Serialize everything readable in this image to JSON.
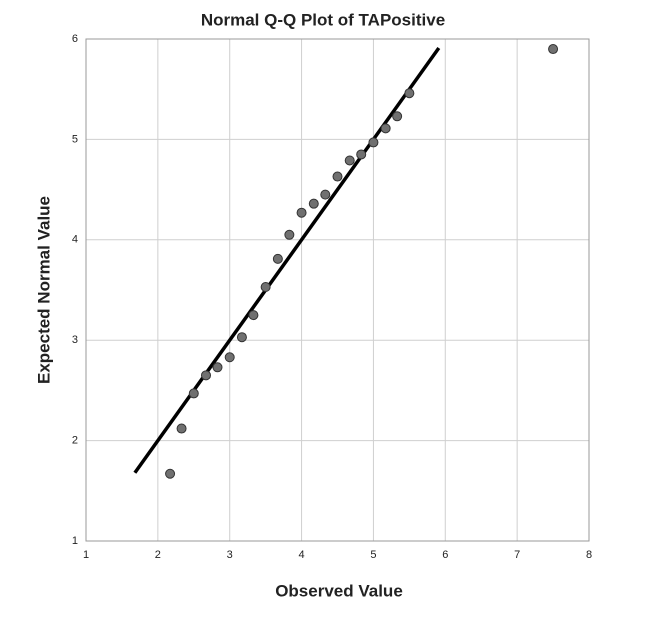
{
  "chart_data": {
    "type": "scatter",
    "title": "Normal Q-Q Plot of TAPositive",
    "x_label": "Observed Value",
    "y_label": "Expected Normal Value",
    "x": [
      2.17,
      2.33,
      2.5,
      2.67,
      2.83,
      3.0,
      3.17,
      3.33,
      3.5,
      3.67,
      3.83,
      4.0,
      4.17,
      4.33,
      4.5,
      4.67,
      4.83,
      5.0,
      5.17,
      5.33,
      5.5,
      7.5
    ],
    "series": [
      {
        "color": "#707070",
        "values": [
          1.67,
          2.12,
          2.47,
          2.65,
          2.73,
          2.83,
          3.03,
          3.25,
          3.53,
          3.81,
          4.05,
          4.27,
          4.36,
          4.45,
          4.63,
          4.79,
          4.85,
          4.97,
          5.11,
          5.23,
          5.46,
          5.9
        ]
      }
    ],
    "reference_line": {
      "x": [
        1.68,
        5.91
      ],
      "y": [
        1.68,
        5.91
      ],
      "color": "#000000"
    },
    "xlim": [
      1,
      8
    ],
    "ylim": [
      1,
      6
    ],
    "xticks": [
      1,
      2,
      3,
      4,
      5,
      6,
      7,
      8
    ],
    "yticks": [
      1,
      2,
      3,
      4,
      5,
      6
    ],
    "grid": true
  }
}
